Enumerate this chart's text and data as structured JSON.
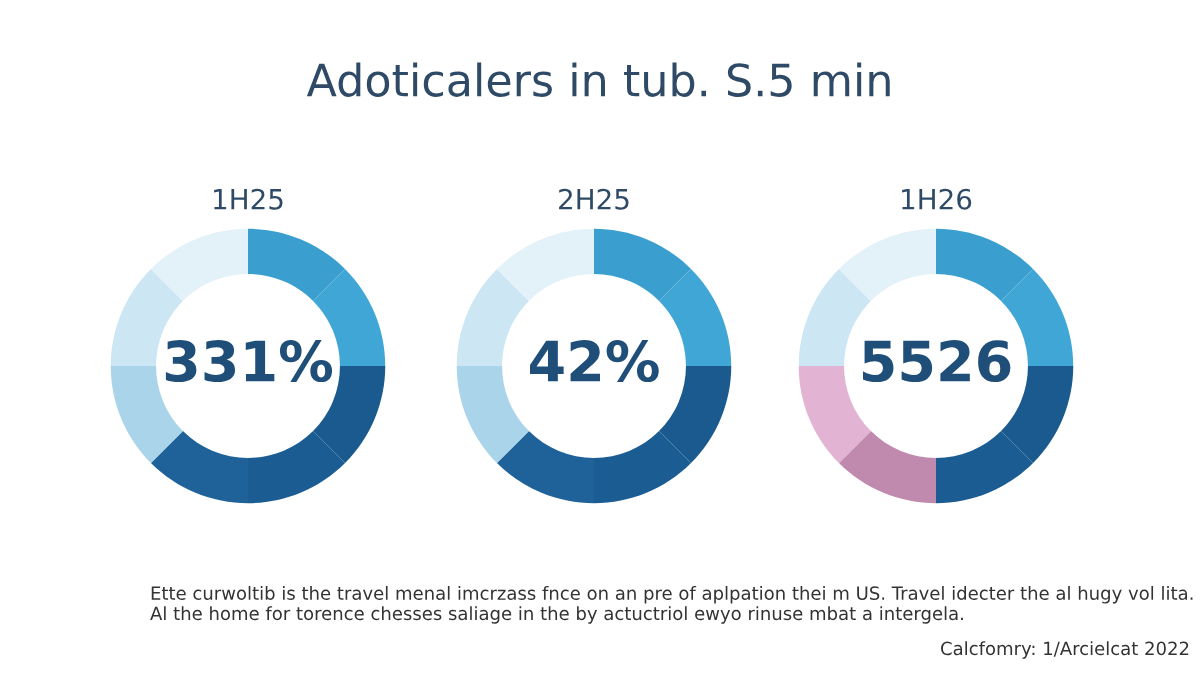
{
  "chart_data": [
    {
      "type": "donut",
      "title": "1H25",
      "categories": [
        null,
        null,
        null,
        null,
        null,
        null,
        null,
        null
      ],
      "values": [
        12.5,
        12.5,
        12.5,
        12.5,
        12.5,
        12.5,
        12.5,
        12.5
      ],
      "colors": [
        "#3a9fcf",
        "#3fa6d6",
        "#1a5a8e",
        "#1b5d92",
        "#1e6299",
        "#a9d4ea",
        "#cde6f3",
        "#e3f1f9"
      ],
      "annotations": [
        "331%"
      ]
    },
    {
      "type": "donut",
      "title": "2H25",
      "categories": [
        null,
        null,
        null,
        null,
        null,
        null,
        null,
        null
      ],
      "values": [
        12.5,
        12.5,
        12.5,
        12.5,
        12.5,
        12.5,
        12.5,
        12.5
      ],
      "colors": [
        "#3a9fcf",
        "#3fa6d6",
        "#1a5a8e",
        "#1b5d92",
        "#1e6299",
        "#a9d4ea",
        "#cde6f3",
        "#e3f1f9"
      ],
      "annotations": [
        "42%"
      ]
    },
    {
      "type": "donut",
      "title": "1H26",
      "categories": [
        null,
        null,
        null,
        null,
        null,
        null,
        null,
        null
      ],
      "values": [
        12.5,
        12.5,
        12.5,
        12.5,
        12.5,
        12.5,
        12.5,
        12.5
      ],
      "colors": [
        "#3a9fcf",
        "#3fa6d6",
        "#1a5a8e",
        "#1b5d92",
        "#c08aae",
        "#e2b3d3",
        "#cde6f3",
        "#e3f1f9"
      ],
      "annotations": [
        "5526"
      ]
    },
    {
      "type": "other",
      "title": "Adoticalers in tub. S.5 min",
      "annotations": [
        "Ette curwoltib is the travel menal imcrzass fnce on an pre of aplpation thei m US. Travel idecter the al hugy vol lita. Al the home for torence chesses saliage in the by actuctriol ewyo rinuse mbat a intergela.",
        "Calcfomry: 1/Arcielcat 2022"
      ]
    }
  ]
}
